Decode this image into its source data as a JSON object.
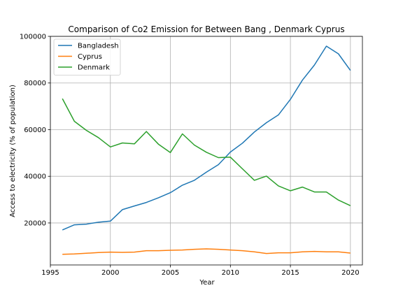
{
  "chart_data": {
    "type": "line",
    "title": "Comparison of Co2 Emission for Between Bang , Denmark Cyprus",
    "xlabel": "Year",
    "ylabel": "Access to electricity (% of population)",
    "xlim": [
      1995,
      2021
    ],
    "ylim": [
      2000,
      100000
    ],
    "xticks": [
      1995,
      2000,
      2005,
      2010,
      2015,
      2020
    ],
    "yticks": [
      20000,
      40000,
      60000,
      80000,
      100000
    ],
    "grid": true,
    "legend_position": "top-left",
    "x": [
      1996,
      1997,
      1998,
      1999,
      2000,
      2001,
      2002,
      2003,
      2004,
      2005,
      2006,
      2007,
      2008,
      2009,
      2010,
      2011,
      2012,
      2013,
      2014,
      2015,
      2016,
      2017,
      2018,
      2019,
      2020
    ],
    "series": [
      {
        "name": "Bangladesh",
        "color": "#1f77b4",
        "values": [
          17000,
          19200,
          19500,
          20300,
          20800,
          25700,
          27300,
          28800,
          30800,
          33000,
          36200,
          38300,
          41800,
          45000,
          50400,
          54200,
          59000,
          63000,
          66300,
          73000,
          81200,
          87700,
          95800,
          92500,
          85400
        ]
      },
      {
        "name": "Cyprus",
        "color": "#ff7f0e",
        "values": [
          6600,
          6700,
          7000,
          7300,
          7500,
          7400,
          7500,
          8100,
          8100,
          8300,
          8400,
          8700,
          8900,
          8700,
          8400,
          8100,
          7600,
          6900,
          7200,
          7200,
          7600,
          7800,
          7600,
          7600,
          7100
        ]
      },
      {
        "name": "Denmark",
        "color": "#2ca02c",
        "values": [
          73300,
          63600,
          59700,
          56600,
          52600,
          54300,
          53900,
          59200,
          53800,
          50200,
          58200,
          53400,
          50300,
          48000,
          48200,
          43200,
          38300,
          40100,
          35900,
          33800,
          35400,
          33300,
          33300,
          29800,
          27400
        ]
      }
    ]
  }
}
